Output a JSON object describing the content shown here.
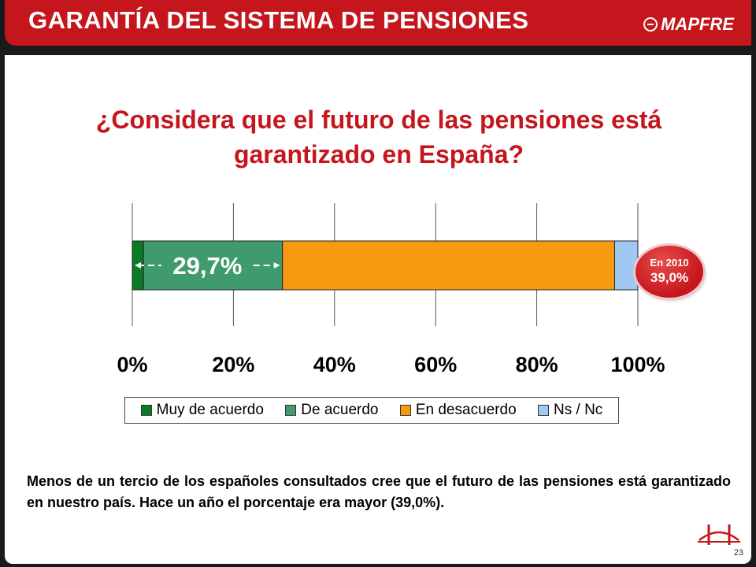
{
  "header": {
    "title": "GARANTÍA DEL SISTEMA DE PENSIONES",
    "logo_text": "MAPFRE"
  },
  "question": {
    "line1": "¿Considera que el futuro de las pensiones está",
    "line2": "garantizado en España?"
  },
  "badge": {
    "year": "En 2010",
    "value": "39,0%"
  },
  "summary": "Menos de un tercio de los españoles consultados cree que el futuro de las pensiones está garantizado en nuestro país. Hace un año el porcentaje era mayor (39,0%).",
  "page_number": "23",
  "colors": {
    "brand": "#c4161c",
    "muy_de_acuerdo": "#0a7a24",
    "de_acuerdo": "#3f9b6e",
    "en_desacuerdo": "#f79a12",
    "ns_nc": "#9fc9f2"
  },
  "chart_data": {
    "type": "bar",
    "orientation": "horizontal",
    "stacked": true,
    "xlim": [
      0,
      100
    ],
    "x_ticks": [
      "0%",
      "20%",
      "40%",
      "60%",
      "80%",
      "100%"
    ],
    "grid": true,
    "legend_position": "bottom",
    "annotation": "29,7%",
    "series": [
      {
        "name": "Muy de acuerdo",
        "values": [
          2.2
        ],
        "color": "#0a7a24"
      },
      {
        "name": "De acuerdo",
        "values": [
          27.5
        ],
        "color": "#3f9b6e"
      },
      {
        "name": "En desacuerdo",
        "values": [
          65.7
        ],
        "color": "#f79a12"
      },
      {
        "name": "Ns / Nc",
        "values": [
          4.6
        ],
        "color": "#9fc9f2"
      }
    ]
  }
}
